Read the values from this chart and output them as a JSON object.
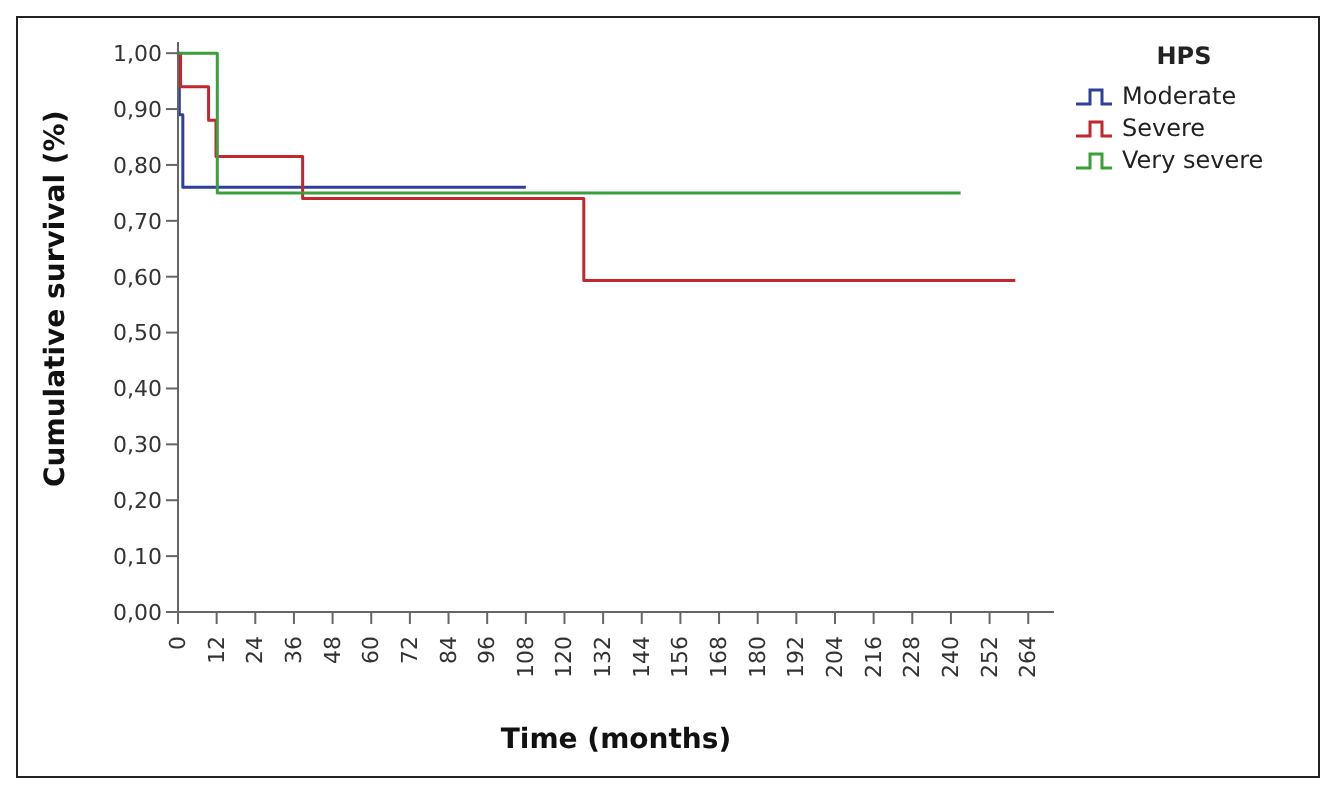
{
  "chart_data": {
    "type": "step",
    "xlabel": "Time (months)",
    "ylabel": "Cumulative survival (%)",
    "legend_title": "HPS",
    "legend": "top right",
    "grid": false,
    "marker": "none",
    "line_style": "solid",
    "xlim": [
      0,
      272
    ],
    "xticks": [
      0,
      12,
      24,
      36,
      48,
      60,
      72,
      84,
      96,
      108,
      120,
      132,
      144,
      156,
      168,
      180,
      192,
      204,
      216,
      228,
      240,
      252,
      264
    ],
    "ylim": [
      0,
      1.02
    ],
    "yticks": [
      {
        "value": 0,
        "label": "0,00"
      },
      {
        "value": 0.1,
        "label": "0,10"
      },
      {
        "value": 0.2,
        "label": "0,20"
      },
      {
        "value": 0.3,
        "label": "0,30"
      },
      {
        "value": 0.4,
        "label": "0,40"
      },
      {
        "value": 0.5,
        "label": "0,50"
      },
      {
        "value": 0.6,
        "label": "0,60"
      },
      {
        "value": 0.7,
        "label": "0,70"
      },
      {
        "value": 0.8,
        "label": "0,80"
      },
      {
        "value": 0.9,
        "label": "0,90"
      },
      {
        "value": 1,
        "label": "1,00"
      }
    ],
    "series": [
      {
        "name": "Moderate",
        "color": "#2e3f9e",
        "x": [
          0,
          0.4,
          1.5,
          108
        ],
        "values": [
          1,
          0.89,
          0.76,
          0.76
        ]
      },
      {
        "name": "Severe",
        "color": "#c1272d",
        "x": [
          0,
          0.8,
          9.5,
          11.8,
          38.7,
          126,
          260
        ],
        "values": [
          1,
          0.94,
          0.88,
          0.815,
          0.74,
          0.593,
          0.593
        ]
      },
      {
        "name": "Very severe",
        "color": "#3aa03a",
        "x": [
          0,
          12.2,
          243
        ],
        "values": [
          1,
          0.75,
          0.75
        ]
      }
    ]
  }
}
